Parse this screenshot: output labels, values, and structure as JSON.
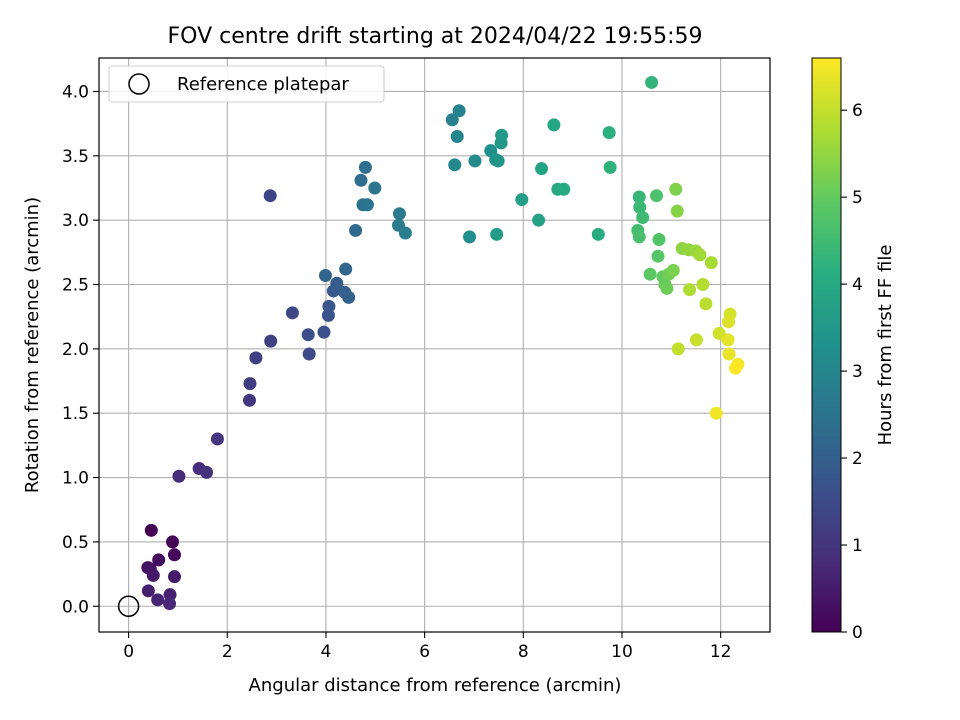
{
  "chart_data": {
    "type": "scatter",
    "title": "FOV centre drift starting at 2024/04/22 19:55:59",
    "xlabel": "Angular distance from reference (arcmin)",
    "ylabel": "Rotation from reference (arcmin)",
    "xlim": [
      -0.6,
      13.0
    ],
    "ylim": [
      -0.2,
      4.26
    ],
    "xticks": [
      0,
      2,
      4,
      6,
      8,
      10,
      12
    ],
    "yticks": [
      0.0,
      0.5,
      1.0,
      1.5,
      2.0,
      2.5,
      3.0,
      3.5,
      4.0
    ],
    "ytick_labels": [
      "0.0",
      "0.5",
      "1.0",
      "1.5",
      "2.0",
      "2.5",
      "3.0",
      "3.5",
      "4.0"
    ],
    "grid": true,
    "legend": {
      "position": "top-left",
      "label": "Reference platepar"
    },
    "reference_point": {
      "x": 0,
      "y": 0
    },
    "colorbar": {
      "label": "Hours from first FF file",
      "range": [
        0,
        6.6
      ],
      "ticks": [
        0,
        1,
        2,
        3,
        4,
        5,
        6
      ],
      "colormap": "viridis"
    },
    "series": [
      {
        "points": [
          [
            0.46,
            0.59
          ],
          [
            0.89,
            0.5
          ],
          [
            0.93,
            0.4
          ],
          [
            0.61,
            0.36
          ],
          [
            0.39,
            0.3
          ],
          [
            0.44,
            0.29
          ],
          [
            0.5,
            0.24
          ],
          [
            0.93,
            0.23
          ],
          [
            0.4,
            0.12
          ],
          [
            0.84,
            0.09
          ],
          [
            0.59,
            0.05
          ],
          [
            0.83,
            0.02
          ],
          [
            1.02,
            1.01
          ],
          [
            1.43,
            1.07
          ],
          [
            1.58,
            1.04
          ],
          [
            1.8,
            1.3
          ],
          [
            2.45,
            1.6
          ],
          [
            2.46,
            1.73
          ],
          [
            2.58,
            1.93
          ],
          [
            2.88,
            2.06
          ],
          [
            2.87,
            3.19
          ],
          [
            3.32,
            2.28
          ],
          [
            3.66,
            1.96
          ],
          [
            3.64,
            2.11
          ],
          [
            3.96,
            2.13
          ],
          [
            4.05,
            2.26
          ],
          [
            4.06,
            2.33
          ],
          [
            4.15,
            2.45
          ],
          [
            4.22,
            2.51
          ],
          [
            4.38,
            2.44
          ],
          [
            4.46,
            2.4
          ],
          [
            3.99,
            2.57
          ],
          [
            4.4,
            2.62
          ],
          [
            4.6,
            2.92
          ],
          [
            4.71,
            3.31
          ],
          [
            4.8,
            3.41
          ],
          [
            4.75,
            3.12
          ],
          [
            4.84,
            3.12
          ],
          [
            4.99,
            3.25
          ],
          [
            5.49,
            3.05
          ],
          [
            5.47,
            2.96
          ],
          [
            5.61,
            2.9
          ],
          [
            6.56,
            3.78
          ],
          [
            6.7,
            3.85
          ],
          [
            6.66,
            3.65
          ],
          [
            6.61,
            3.43
          ],
          [
            7.02,
            3.46
          ],
          [
            6.91,
            2.87
          ],
          [
            7.34,
            3.54
          ],
          [
            7.44,
            3.47
          ],
          [
            7.49,
            3.46
          ],
          [
            7.55,
            3.6
          ],
          [
            7.56,
            3.66
          ],
          [
            7.46,
            2.89
          ],
          [
            7.97,
            3.16
          ],
          [
            8.31,
            3.0
          ],
          [
            8.37,
            3.4
          ],
          [
            8.62,
            3.74
          ],
          [
            8.7,
            3.24
          ],
          [
            8.82,
            3.24
          ],
          [
            9.52,
            2.89
          ],
          [
            9.74,
            3.68
          ],
          [
            9.76,
            3.41
          ],
          [
            10.6,
            4.07
          ],
          [
            10.35,
            3.18
          ],
          [
            10.36,
            3.1
          ],
          [
            10.42,
            3.02
          ],
          [
            10.32,
            2.92
          ],
          [
            10.35,
            2.87
          ],
          [
            10.7,
            3.19
          ],
          [
            10.75,
            2.85
          ],
          [
            10.73,
            2.72
          ],
          [
            10.57,
            2.58
          ],
          [
            10.83,
            2.56
          ],
          [
            10.87,
            2.5
          ],
          [
            10.91,
            2.47
          ],
          [
            10.95,
            2.58
          ],
          [
            11.04,
            2.61
          ],
          [
            11.09,
            3.24
          ],
          [
            11.12,
            3.07
          ],
          [
            11.22,
            2.78
          ],
          [
            11.35,
            2.77
          ],
          [
            11.5,
            2.76
          ],
          [
            11.58,
            2.73
          ],
          [
            11.81,
            2.67
          ],
          [
            11.37,
            2.46
          ],
          [
            11.64,
            2.5
          ],
          [
            11.7,
            2.35
          ],
          [
            11.14,
            2.0
          ],
          [
            11.51,
            2.07
          ],
          [
            11.97,
            2.12
          ],
          [
            12.19,
            2.27
          ],
          [
            12.16,
            2.21
          ],
          [
            12.15,
            2.07
          ],
          [
            12.17,
            1.96
          ],
          [
            11.91,
            1.5
          ],
          [
            12.35,
            1.88
          ],
          [
            12.3,
            1.85
          ]
        ]
      }
    ]
  }
}
